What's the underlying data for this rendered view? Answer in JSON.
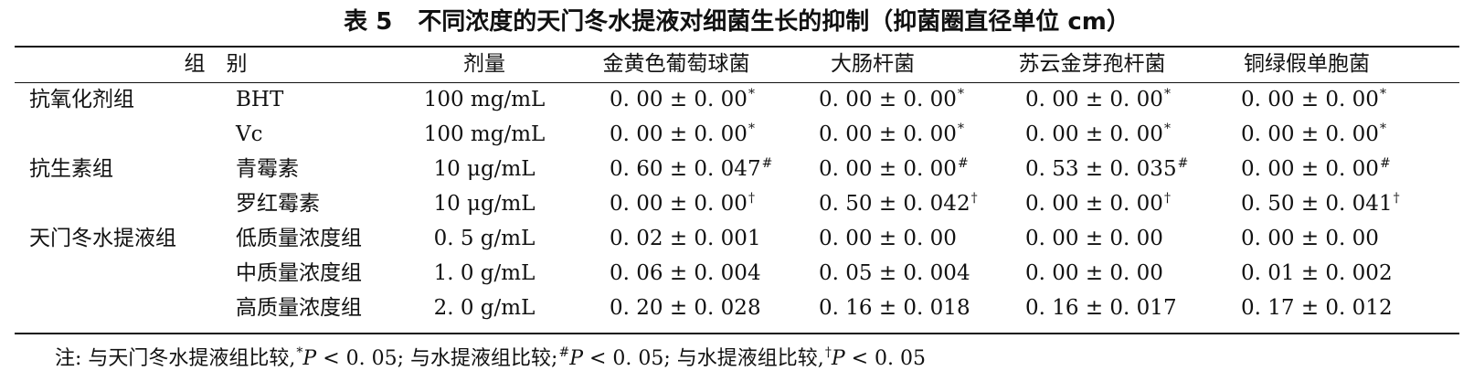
{
  "table": {
    "number": "表 5",
    "title": "不同浓度的天门冬水提液对细菌生长的抑制（抑菌圈直径单位 cm）",
    "headers": {
      "group": "组　别",
      "dose": "剂量",
      "bacteria": [
        "金黄色葡萄球菌",
        "大肠杆菌",
        "苏云金芽孢杆菌",
        "铜绿假单胞菌"
      ]
    },
    "rows": [
      {
        "group": "抗氧化剂组",
        "sub": "BHT",
        "dose": "100 mg/mL",
        "values": [
          {
            "v": "0. 00 ± 0. 00",
            "mark": "*"
          },
          {
            "v": "0. 00 ± 0. 00",
            "mark": "*"
          },
          {
            "v": "0. 00 ± 0. 00",
            "mark": "*"
          },
          {
            "v": "0. 00 ± 0. 00",
            "mark": "*"
          }
        ]
      },
      {
        "group": "",
        "sub": "Vc",
        "dose": "100 mg/mL",
        "values": [
          {
            "v": "0. 00 ± 0. 00",
            "mark": "*"
          },
          {
            "v": "0. 00 ± 0. 00",
            "mark": "*"
          },
          {
            "v": "0. 00 ± 0. 00",
            "mark": "*"
          },
          {
            "v": "0. 00 ± 0. 00",
            "mark": "*"
          }
        ]
      },
      {
        "group": "抗生素组",
        "sub": "青霉素",
        "dose": "10 μg/mL",
        "values": [
          {
            "v": "0. 60 ± 0. 047",
            "mark": "#"
          },
          {
            "v": "0. 00 ± 0. 00",
            "mark": "#"
          },
          {
            "v": "0. 53 ± 0. 035",
            "mark": "#"
          },
          {
            "v": "0. 00 ± 0. 00",
            "mark": "#"
          }
        ]
      },
      {
        "group": "",
        "sub": "罗红霉素",
        "dose": "10 μg/mL",
        "values": [
          {
            "v": "0. 00 ± 0. 00",
            "mark": "†"
          },
          {
            "v": "0. 50 ± 0. 042",
            "mark": "†"
          },
          {
            "v": "0. 00 ± 0. 00",
            "mark": "†"
          },
          {
            "v": "0. 50 ± 0. 041",
            "mark": "†"
          }
        ]
      },
      {
        "group": "天门冬水提液组",
        "sub": "低质量浓度组",
        "dose": "0. 5 g/mL",
        "values": [
          {
            "v": "0. 02 ± 0. 001",
            "mark": ""
          },
          {
            "v": "0. 00 ± 0. 00",
            "mark": ""
          },
          {
            "v": "0. 00 ± 0. 00",
            "mark": ""
          },
          {
            "v": "0. 00 ± 0. 00",
            "mark": ""
          }
        ]
      },
      {
        "group": "",
        "sub": "中质量浓度组",
        "dose": "1. 0 g/mL",
        "values": [
          {
            "v": "0. 06 ± 0. 004",
            "mark": ""
          },
          {
            "v": "0. 05 ± 0. 004",
            "mark": ""
          },
          {
            "v": "0. 00 ± 0. 00",
            "mark": ""
          },
          {
            "v": "0. 01 ± 0. 002",
            "mark": ""
          }
        ]
      },
      {
        "group": "",
        "sub": "高质量浓度组",
        "dose": "2. 0 g/mL",
        "values": [
          {
            "v": "0. 20 ± 0. 028",
            "mark": ""
          },
          {
            "v": "0. 16 ± 0. 018",
            "mark": ""
          },
          {
            "v": "0. 16 ± 0. 017",
            "mark": ""
          },
          {
            "v": "0. 17 ± 0. 012",
            "mark": ""
          }
        ]
      }
    ],
    "note": {
      "prefix": "注:",
      "c1": " 与天门冬水提液组比较,",
      "m1": "*",
      "p1": "P",
      "t1": " < 0. 05;",
      "c2": " 与水提液组比较;",
      "m2": "#",
      "p2": "P",
      "t2": " < 0. 05;",
      "c3": " 与水提液组比较,",
      "m3": "†",
      "p3": "P",
      "t3": " < 0. 05"
    }
  }
}
